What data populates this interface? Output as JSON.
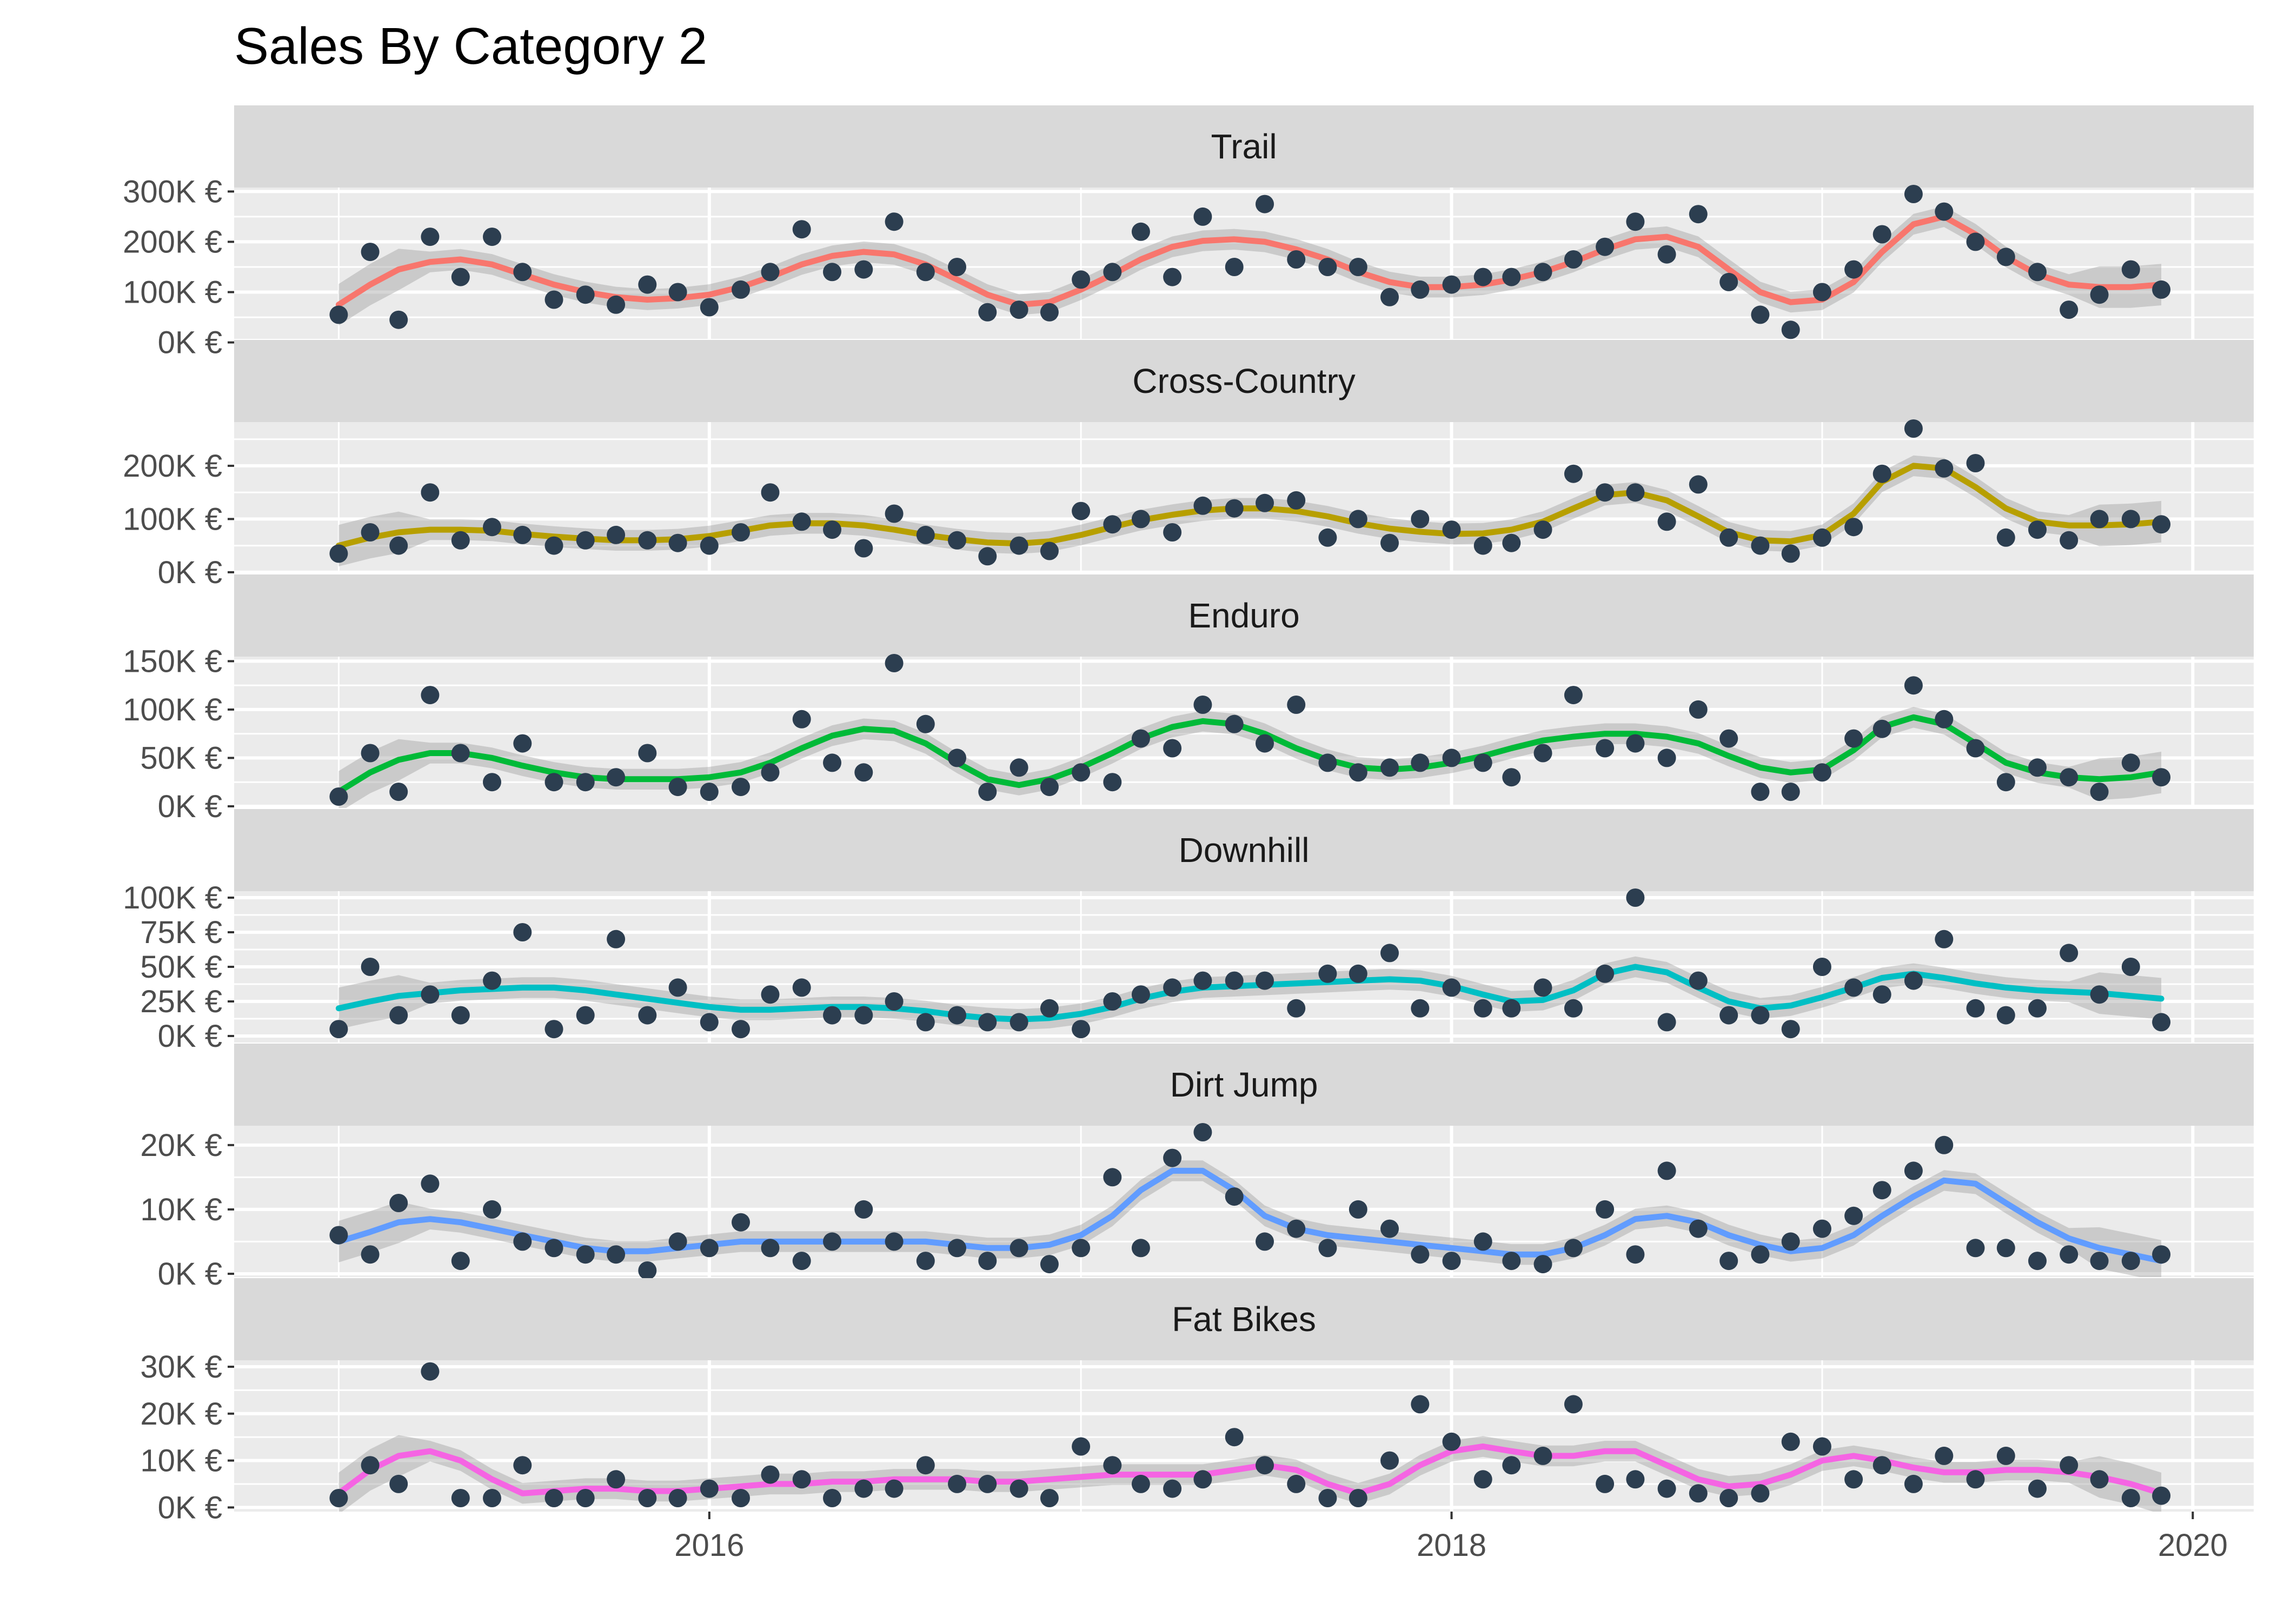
{
  "chart_data": {
    "type": "scatter",
    "title": "Sales By Category 2",
    "xlabel": "",
    "ylabel": "",
    "layout": "faceted, one panel per category, stacked vertically",
    "smoother": "loess line with grey confidence band",
    "point_color": "#2c3e50",
    "band_color": "#999999",
    "panel_background": "#ebebeb",
    "strip_background": "#d9d9d9",
    "grid": true,
    "legend": "none",
    "x_axis": {
      "type": "date",
      "range": [
        "2014-09-20",
        "2020-03-01"
      ],
      "ticks": [
        "2016",
        "2018",
        "2020"
      ],
      "tick_dates": [
        "2016-01-01",
        "2018-01-01",
        "2020-01-01"
      ]
    },
    "months": [
      "2015-01",
      "2015-02",
      "2015-03",
      "2015-04",
      "2015-05",
      "2015-06",
      "2015-07",
      "2015-08",
      "2015-09",
      "2015-10",
      "2015-11",
      "2015-12",
      "2016-01",
      "2016-02",
      "2016-03",
      "2016-04",
      "2016-05",
      "2016-06",
      "2016-07",
      "2016-08",
      "2016-09",
      "2016-10",
      "2016-11",
      "2016-12",
      "2017-01",
      "2017-02",
      "2017-03",
      "2017-04",
      "2017-05",
      "2017-06",
      "2017-07",
      "2017-08",
      "2017-09",
      "2017-10",
      "2017-11",
      "2017-12",
      "2018-01",
      "2018-02",
      "2018-03",
      "2018-04",
      "2018-05",
      "2018-06",
      "2018-07",
      "2018-08",
      "2018-09",
      "2018-10",
      "2018-11",
      "2018-12",
      "2019-01",
      "2019-02",
      "2019-03",
      "2019-04",
      "2019-05",
      "2019-06",
      "2019-07",
      "2019-08",
      "2019-09",
      "2019-10",
      "2019-11",
      "2019-12"
    ],
    "facets": [
      {
        "name": "Trail",
        "color": "#F8766D",
        "y_ticks": [
          0,
          100000,
          200000,
          300000
        ],
        "y_tick_labels": [
          "0K €",
          "100K €",
          "200K €",
          "300K €"
        ],
        "ylim": [
          20000,
          295000
        ],
        "values": [
          55000,
          180000,
          45000,
          210000,
          130000,
          210000,
          140000,
          85000,
          95000,
          75000,
          115000,
          100000,
          70000,
          105000,
          140000,
          225000,
          140000,
          145000,
          240000,
          140000,
          150000,
          60000,
          65000,
          60000,
          125000,
          140000,
          220000,
          130000,
          250000,
          150000,
          275000,
          165000,
          150000,
          150000,
          90000,
          105000,
          115000,
          130000,
          130000,
          140000,
          165000,
          190000,
          240000,
          175000,
          255000,
          120000,
          55000,
          25000,
          100000,
          145000,
          215000,
          295000,
          260000,
          200000,
          170000,
          140000,
          65000,
          95000,
          145000,
          105000
        ],
        "trend": [
          75000,
          115000,
          145000,
          160000,
          165000,
          155000,
          135000,
          115000,
          100000,
          90000,
          85000,
          88000,
          95000,
          110000,
          130000,
          155000,
          172000,
          180000,
          175000,
          155000,
          125000,
          95000,
          75000,
          80000,
          105000,
          135000,
          165000,
          190000,
          202000,
          205000,
          200000,
          185000,
          165000,
          140000,
          120000,
          110000,
          110000,
          115000,
          125000,
          140000,
          160000,
          185000,
          205000,
          210000,
          190000,
          145000,
          100000,
          80000,
          85000,
          120000,
          180000,
          235000,
          250000,
          215000,
          170000,
          135000,
          115000,
          110000,
          110000,
          115000
        ]
      },
      {
        "name": "Cross-Country",
        "color": "#B79F00",
        "y_ticks": [
          0,
          100000,
          200000
        ],
        "y_tick_labels": [
          "0K €",
          "100K €",
          "200K €"
        ],
        "ylim": [
          10000,
          270000
        ],
        "values": [
          35000,
          75000,
          50000,
          150000,
          60000,
          85000,
          70000,
          50000,
          60000,
          70000,
          60000,
          55000,
          50000,
          75000,
          150000,
          95000,
          80000,
          45000,
          110000,
          70000,
          60000,
          30000,
          50000,
          40000,
          115000,
          90000,
          100000,
          75000,
          125000,
          120000,
          130000,
          135000,
          65000,
          100000,
          55000,
          100000,
          80000,
          50000,
          55000,
          80000,
          185000,
          150000,
          150000,
          95000,
          165000,
          65000,
          50000,
          35000,
          65000,
          85000,
          185000,
          270000,
          195000,
          205000,
          65000,
          80000,
          60000,
          100000,
          100000,
          90000
        ],
        "trend": [
          50000,
          65000,
          75000,
          80000,
          80000,
          78000,
          72000,
          67000,
          63000,
          60000,
          60000,
          62000,
          68000,
          78000,
          88000,
          92000,
          92000,
          88000,
          80000,
          70000,
          62000,
          56000,
          54000,
          58000,
          70000,
          85000,
          98000,
          108000,
          116000,
          120000,
          120000,
          115000,
          105000,
          92000,
          82000,
          76000,
          72000,
          73000,
          80000,
          95000,
          120000,
          145000,
          150000,
          135000,
          105000,
          75000,
          60000,
          58000,
          70000,
          110000,
          170000,
          200000,
          195000,
          160000,
          120000,
          95000,
          88000,
          88000,
          90000,
          95000
        ]
      },
      {
        "name": "Enduro",
        "color": "#00BA38",
        "y_ticks": [
          0,
          50000,
          100000,
          150000
        ],
        "y_tick_labels": [
          "0K €",
          "50K €",
          "100K €",
          "150K €"
        ],
        "ylim": [
          5000,
          148000
        ],
        "values": [
          10000,
          55000,
          15000,
          115000,
          55000,
          25000,
          65000,
          25000,
          25000,
          30000,
          55000,
          20000,
          15000,
          20000,
          35000,
          90000,
          45000,
          35000,
          148000,
          85000,
          50000,
          15000,
          40000,
          20000,
          35000,
          25000,
          70000,
          60000,
          105000,
          85000,
          65000,
          105000,
          45000,
          35000,
          40000,
          45000,
          50000,
          45000,
          30000,
          55000,
          115000,
          60000,
          65000,
          50000,
          100000,
          70000,
          15000,
          15000,
          35000,
          70000,
          80000,
          125000,
          90000,
          60000,
          25000,
          40000,
          30000,
          15000,
          45000,
          30000
        ],
        "trend": [
          15000,
          35000,
          48000,
          55000,
          55000,
          50000,
          42000,
          35000,
          30000,
          28000,
          28000,
          28000,
          30000,
          35000,
          45000,
          60000,
          73000,
          80000,
          78000,
          65000,
          45000,
          28000,
          22000,
          28000,
          40000,
          55000,
          70000,
          82000,
          88000,
          85000,
          75000,
          60000,
          48000,
          40000,
          38000,
          40000,
          45000,
          52000,
          60000,
          68000,
          72000,
          75000,
          75000,
          72000,
          65000,
          52000,
          40000,
          35000,
          38000,
          58000,
          82000,
          92000,
          85000,
          65000,
          45000,
          35000,
          30000,
          28000,
          30000,
          35000
        ]
      },
      {
        "name": "Downhill",
        "color": "#00BFC4",
        "y_ticks": [
          0,
          25000,
          50000,
          75000,
          100000
        ],
        "y_tick_labels": [
          "0K €",
          "25K €",
          "50K €",
          "75K €",
          "100K €"
        ],
        "ylim": [
          0,
          100000
        ],
        "values": [
          5000,
          50000,
          15000,
          30000,
          15000,
          40000,
          75000,
          5000,
          15000,
          70000,
          15000,
          35000,
          10000,
          5000,
          30000,
          35000,
          15000,
          15000,
          25000,
          10000,
          15000,
          10000,
          10000,
          20000,
          5000,
          25000,
          30000,
          35000,
          40000,
          40000,
          40000,
          20000,
          45000,
          45000,
          60000,
          20000,
          35000,
          20000,
          20000,
          35000,
          20000,
          45000,
          100000,
          10000,
          40000,
          15000,
          15000,
          5000,
          50000,
          35000,
          30000,
          40000,
          70000,
          20000,
          15000,
          20000,
          60000,
          30000,
          50000,
          10000
        ],
        "trend": [
          20000,
          25000,
          29000,
          31000,
          33000,
          34000,
          35000,
          35000,
          33000,
          30000,
          27000,
          24000,
          21000,
          19000,
          19000,
          20000,
          21000,
          21000,
          20000,
          18000,
          15000,
          13000,
          12000,
          13000,
          16000,
          21000,
          27000,
          32000,
          35000,
          36000,
          37000,
          38000,
          39000,
          40000,
          41000,
          40000,
          36000,
          30000,
          25000,
          26000,
          33000,
          45000,
          50000,
          46000,
          35000,
          25000,
          20000,
          22000,
          28000,
          35000,
          42000,
          45000,
          42000,
          38000,
          35000,
          33000,
          32000,
          31000,
          29000,
          27000
        ]
      },
      {
        "name": "Dirt Jump",
        "color": "#619CFF",
        "y_ticks": [
          0,
          10000,
          20000
        ],
        "y_tick_labels": [
          "0K €",
          "10K €",
          "20K €"
        ],
        "ylim": [
          500,
          22000
        ],
        "values": [
          6000,
          3000,
          11000,
          14000,
          2000,
          10000,
          5000,
          4000,
          3000,
          3000,
          500,
          5000,
          4000,
          8000,
          4000,
          2000,
          5000,
          10000,
          5000,
          2000,
          4000,
          2000,
          4000,
          1500,
          4000,
          15000,
          4000,
          18000,
          22000,
          12000,
          5000,
          7000,
          4000,
          10000,
          7000,
          3000,
          2000,
          5000,
          2000,
          1500,
          4000,
          10000,
          3000,
          16000,
          7000,
          2000,
          3000,
          5000,
          7000,
          9000,
          13000,
          16000,
          20000,
          4000,
          4000,
          2000,
          3000,
          2000,
          2000,
          3000
        ],
        "trend": [
          5000,
          6500,
          8000,
          8500,
          8000,
          7000,
          6000,
          5000,
          4000,
          3500,
          3500,
          4000,
          4500,
          5000,
          5000,
          5000,
          5000,
          5000,
          5000,
          5000,
          4500,
          4000,
          4000,
          4500,
          6000,
          9000,
          13000,
          16000,
          16000,
          13000,
          9000,
          7000,
          6000,
          5500,
          5000,
          4500,
          4000,
          3500,
          3000,
          3000,
          4000,
          6000,
          8500,
          9000,
          8000,
          6000,
          4500,
          3500,
          4000,
          6000,
          9000,
          12000,
          14500,
          14000,
          11000,
          8000,
          5500,
          4000,
          3000,
          2000
        ]
      },
      {
        "name": "Fat Bikes",
        "color": "#F564E3",
        "y_ticks": [
          0,
          10000,
          20000,
          30000
        ],
        "y_tick_labels": [
          "0K €",
          "10K €",
          "20K €",
          "30K €"
        ],
        "ylim": [
          500,
          30000
        ],
        "values": [
          2000,
          9000,
          5000,
          29000,
          2000,
          2000,
          9000,
          2000,
          2000,
          6000,
          2000,
          2000,
          4000,
          2000,
          7000,
          6000,
          2000,
          4000,
          4000,
          9000,
          5000,
          5000,
          4000,
          2000,
          13000,
          9000,
          5000,
          4000,
          6000,
          15000,
          9000,
          5000,
          2000,
          2000,
          10000,
          22000,
          14000,
          6000,
          9000,
          11000,
          22000,
          5000,
          6000,
          4000,
          3000,
          2000,
          3000,
          14000,
          13000,
          6000,
          9000,
          5000,
          11000,
          6000,
          11000,
          4000,
          9000,
          6000,
          2000,
          2500
        ],
        "trend": [
          3000,
          8000,
          11000,
          12000,
          10000,
          6000,
          3000,
          3500,
          4000,
          4000,
          3500,
          3500,
          4000,
          4500,
          5000,
          5000,
          5500,
          5500,
          6000,
          6000,
          6000,
          5500,
          5500,
          6000,
          6500,
          7000,
          7000,
          7000,
          7000,
          8000,
          9000,
          8000,
          5000,
          3000,
          5000,
          9000,
          12000,
          13000,
          12000,
          11000,
          11000,
          12000,
          12000,
          9000,
          6000,
          4500,
          5000,
          7000,
          10000,
          11000,
          10000,
          8500,
          7500,
          7500,
          8000,
          8000,
          7500,
          6500,
          5000,
          3000
        ]
      }
    ]
  }
}
